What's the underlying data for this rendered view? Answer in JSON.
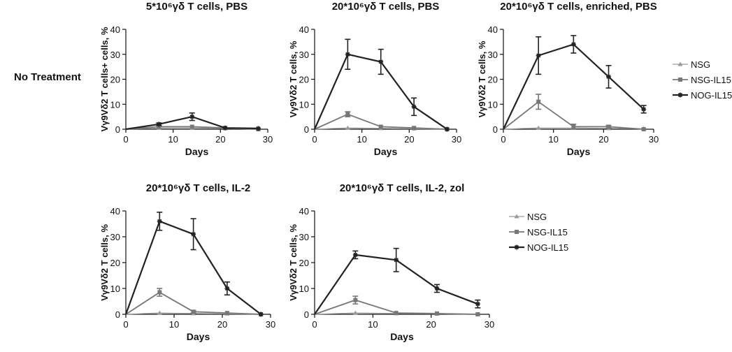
{
  "row_label": "No Treatment",
  "legends": [
    [
      "NSG",
      "NSG-IL15",
      "NOG-IL15"
    ],
    [
      "NSG",
      "NSG-IL15",
      "NOG-IL15"
    ]
  ],
  "chart_data": [
    {
      "type": "line",
      "title": "5*10⁶γδ T cells, PBS",
      "xlabel": "Days",
      "ylabel": "Vγ9Vδ2 T cells+ cells, %",
      "xlim": [
        0,
        30
      ],
      "ylim": [
        0,
        40
      ],
      "xticks": [
        0,
        10,
        20,
        30
      ],
      "yticks": [
        0,
        10,
        20,
        30,
        40
      ],
      "series": [
        {
          "name": "NSG",
          "x": [
            0,
            7,
            14,
            21,
            28
          ],
          "y": [
            0,
            0.5,
            0.5,
            0.3,
            0
          ],
          "err": [
            0,
            0,
            0,
            0,
            0
          ]
        },
        {
          "name": "NSG-IL15",
          "x": [
            0,
            7,
            14,
            21,
            28
          ],
          "y": [
            0,
            1,
            1,
            0.5,
            0
          ],
          "err": [
            0,
            0,
            0,
            0,
            0
          ]
        },
        {
          "name": "NOG-IL15",
          "x": [
            0,
            7,
            14,
            21,
            28
          ],
          "y": [
            0,
            2,
            5,
            0.5,
            0.3
          ],
          "err": [
            0,
            0.5,
            1.5,
            0,
            0
          ]
        }
      ]
    },
    {
      "type": "line",
      "title": "20*10⁶γδ T cells, PBS",
      "xlabel": "Days",
      "ylabel": "Vγ9Vδ2 T cells, %",
      "xlim": [
        0,
        30
      ],
      "ylim": [
        0,
        40
      ],
      "xticks": [
        0,
        10,
        20,
        30
      ],
      "yticks": [
        0,
        10,
        20,
        30,
        40
      ],
      "series": [
        {
          "name": "NSG",
          "x": [
            0,
            7,
            14,
            21,
            28
          ],
          "y": [
            0,
            0.5,
            0.3,
            0.2,
            0
          ],
          "err": [
            0,
            0,
            0,
            0,
            0
          ]
        },
        {
          "name": "NSG-IL15",
          "x": [
            0,
            7,
            14,
            21,
            28
          ],
          "y": [
            0,
            6,
            1,
            0.5,
            0
          ],
          "err": [
            0,
            1,
            0,
            0,
            0
          ]
        },
        {
          "name": "NOG-IL15",
          "x": [
            0,
            7,
            14,
            21,
            28
          ],
          "y": [
            0,
            30,
            27,
            9,
            0
          ],
          "err": [
            0,
            6,
            5,
            3.5,
            0
          ]
        }
      ]
    },
    {
      "type": "line",
      "title": "20*10⁶γδ T cells, enriched, PBS",
      "xlabel": "Days",
      "ylabel": "Vγ9Vδ2 T cells, %",
      "xlim": [
        0,
        30
      ],
      "ylim": [
        0,
        40
      ],
      "xticks": [
        0,
        10,
        20,
        30
      ],
      "yticks": [
        0,
        10,
        20,
        30,
        40
      ],
      "series": [
        {
          "name": "NSG",
          "x": [
            0,
            7,
            14,
            21,
            28
          ],
          "y": [
            0,
            0.5,
            0.5,
            0.3,
            0.2
          ],
          "err": [
            0,
            0,
            0,
            0,
            0
          ]
        },
        {
          "name": "NSG-IL15",
          "x": [
            0,
            7,
            14,
            21,
            28
          ],
          "y": [
            0,
            11,
            1,
            1,
            0
          ],
          "err": [
            0,
            3,
            1,
            0.5,
            0
          ]
        },
        {
          "name": "NOG-IL15",
          "x": [
            0,
            7,
            14,
            21,
            28
          ],
          "y": [
            0,
            29.5,
            34,
            21,
            8
          ],
          "err": [
            0,
            7.5,
            3.5,
            4.5,
            1.5
          ]
        }
      ]
    },
    {
      "type": "line",
      "title": "20*10⁶γδ T cells, IL-2",
      "xlabel": "Days",
      "ylabel": "Vγ9Vδ2 T cells, %",
      "xlim": [
        0,
        30
      ],
      "ylim": [
        0,
        40
      ],
      "xticks": [
        0,
        10,
        20,
        30
      ],
      "yticks": [
        0,
        10,
        20,
        30,
        40
      ],
      "series": [
        {
          "name": "NSG",
          "x": [
            0,
            7,
            14,
            21,
            28
          ],
          "y": [
            0,
            0.5,
            0.3,
            0.2,
            0
          ],
          "err": [
            0,
            0,
            0,
            0,
            0
          ]
        },
        {
          "name": "NSG-IL15",
          "x": [
            0,
            7,
            14,
            21,
            28
          ],
          "y": [
            0,
            8.5,
            1,
            0.5,
            0
          ],
          "err": [
            0,
            1.5,
            0.5,
            0,
            0
          ]
        },
        {
          "name": "NOG-IL15",
          "x": [
            0,
            7,
            14,
            21,
            28
          ],
          "y": [
            0,
            36,
            31,
            10,
            0
          ],
          "err": [
            0,
            3.5,
            6,
            2.5,
            0
          ]
        }
      ]
    },
    {
      "type": "line",
      "title": "20*10⁶γδ T cells, IL-2, zol",
      "xlabel": "Days",
      "ylabel": "Vγ9Vδ2 T cells, %",
      "xlim": [
        0,
        30
      ],
      "ylim": [
        0,
        40
      ],
      "xticks": [
        0,
        10,
        20,
        30
      ],
      "yticks": [
        0,
        10,
        20,
        30,
        40
      ],
      "series": [
        {
          "name": "NSG",
          "x": [
            0,
            7,
            14,
            21,
            28
          ],
          "y": [
            0,
            0.5,
            0.3,
            0.2,
            0
          ],
          "err": [
            0,
            0,
            0,
            0,
            0
          ]
        },
        {
          "name": "NSG-IL15",
          "x": [
            0,
            7,
            14,
            21,
            28
          ],
          "y": [
            0,
            5.5,
            0.5,
            0.3,
            0
          ],
          "err": [
            0,
            1.5,
            0,
            0,
            0
          ]
        },
        {
          "name": "NOG-IL15",
          "x": [
            0,
            7,
            14,
            21,
            28
          ],
          "y": [
            0,
            23,
            21,
            10,
            4
          ],
          "err": [
            0,
            1.5,
            4.5,
            1.5,
            1.5
          ]
        }
      ]
    }
  ],
  "colors": {
    "NSG": "#999999",
    "NSG-IL15": "#777777",
    "NOG-IL15": "#222222",
    "axis": "#111111"
  }
}
